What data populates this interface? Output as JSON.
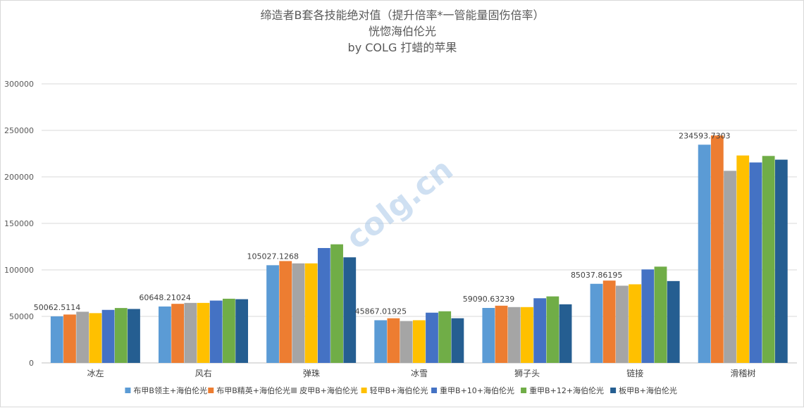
{
  "chart_data": {
    "type": "bar",
    "title": "缔造者B套各技能绝对值（提升倍率*一管能量固伤倍率）",
    "subtitle": "恍惚海伯伦光",
    "author": "by COLG 打蜡的苹果",
    "watermark": "colg.cn",
    "categories": [
      "冰左",
      "风右",
      "弹珠",
      "冰雪",
      "狮子头",
      "链接",
      "滑稽树"
    ],
    "ylim": [
      0,
      300000
    ],
    "yticks": [
      "0",
      "50000",
      "100000",
      "150000",
      "200000",
      "250000",
      "300000"
    ],
    "grid": true,
    "legend_position": "bottom",
    "series": [
      {
        "name": "布甲B领主+海伯伦光",
        "color": "#5b9bd5",
        "values": [
          50062.5114,
          60648.21024,
          105027.1268,
          45867.01925,
          59090.63239,
          85037.86195,
          234593.7303
        ]
      },
      {
        "name": "布甲B精英+海伯伦光",
        "color": "#ed7d31",
        "values": [
          52000,
          63500,
          109500,
          48000,
          61500,
          88500,
          244500
        ]
      },
      {
        "name": "皮甲B+海伯伦光",
        "color": "#a5a5a5",
        "values": [
          55000,
          64500,
          107000,
          45000,
          60000,
          83000,
          206500
        ]
      },
      {
        "name": "轻甲B+海伯伦光",
        "color": "#ffc000",
        "values": [
          53500,
          64500,
          107000,
          45867,
          60000,
          84500,
          223000
        ]
      },
      {
        "name": "重甲B+10+海伯伦光",
        "color": "#4472c4",
        "values": [
          57000,
          67000,
          123500,
          54000,
          69500,
          100500,
          215500
        ]
      },
      {
        "name": "重甲B+12+海伯伦光",
        "color": "#70ad47",
        "values": [
          59000,
          69000,
          127500,
          55500,
          71500,
          103500,
          222500
        ]
      },
      {
        "name": "板甲B+海伯伦光",
        "color": "#255e91",
        "values": [
          58000,
          68500,
          113500,
          48000,
          63000,
          88000,
          218500
        ]
      }
    ],
    "data_labels": [
      "50062.5114",
      "60648.21024",
      "105027.1268",
      "45867.01925",
      "59090.63239",
      "85037.86195",
      "234593.7303"
    ]
  }
}
